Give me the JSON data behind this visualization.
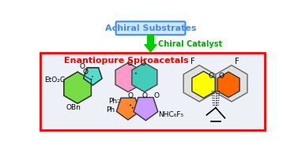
{
  "bg_color": "#ffffff",
  "box_color": "#ff0000",
  "box_bg": "#eef0f8",
  "title_top": "Achiral Substrates",
  "title_top_color": "#4488ff",
  "title_top_bg": "#cce8ff",
  "title_top_border": "#4488ff",
  "arrow_color": "#00cc00",
  "catalyst_text": "Chiral Catalyst",
  "catalyst_color": "#00aa00",
  "enantiopure_text": "Enantiopure Spiroacetals",
  "enantiopure_color": "#ff0000",
  "green": "#77dd44",
  "cyan": "#55ddcc",
  "pink": "#ff99cc",
  "orange": "#ff8833",
  "purple": "#cc99ff",
  "yellow": "#ffff00",
  "orange2": "#ff6600",
  "teal": "#44ccbb",
  "white": "#ffffff",
  "gray_ring": "#aaaaaa",
  "black": "#000000"
}
